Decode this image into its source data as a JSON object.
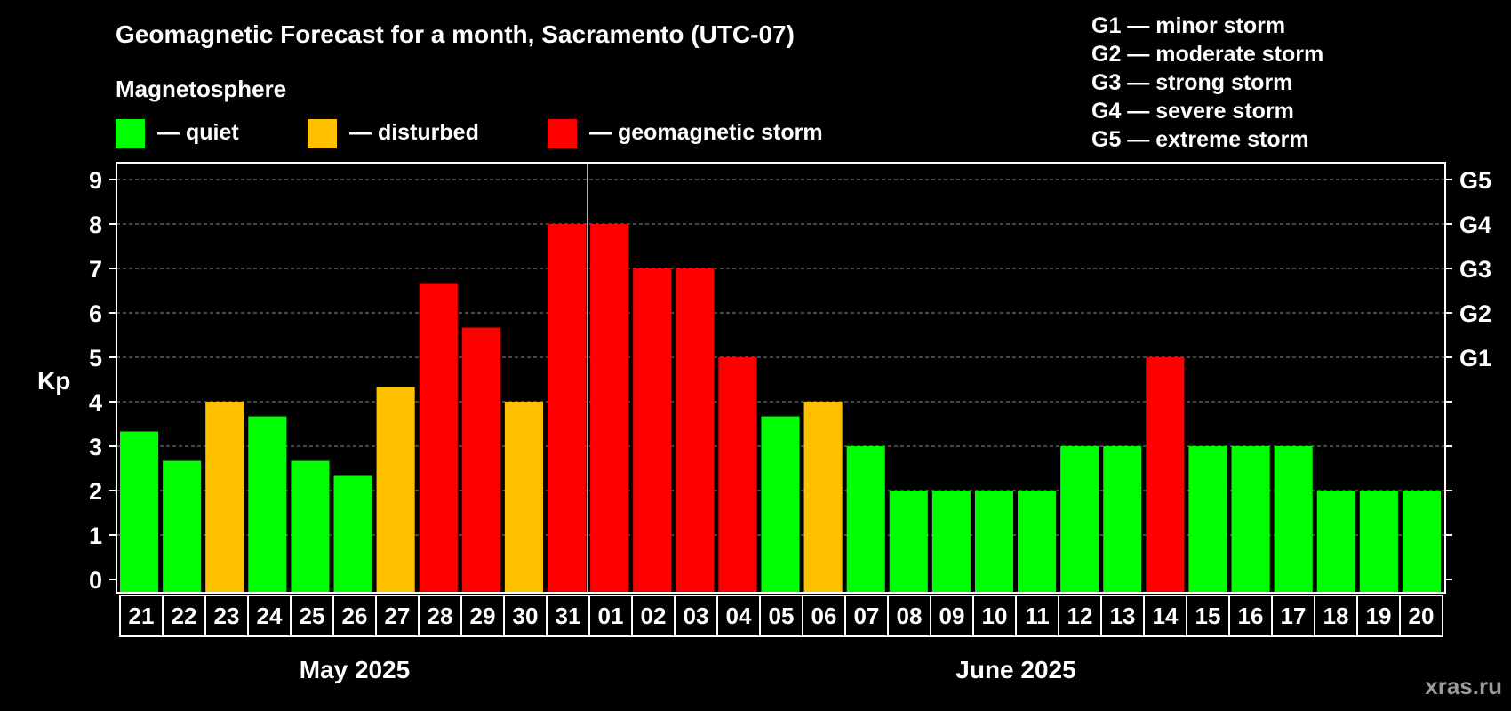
{
  "chart_data": {
    "type": "bar",
    "title": "Geomagnetic Forecast for a month, Sacramento (UTC-07)",
    "subtitle": "Magnetosphere",
    "ylabel": "Kp",
    "ylim": [
      0,
      9
    ],
    "yticks": [
      0,
      1,
      2,
      3,
      4,
      5,
      6,
      7,
      8,
      9
    ],
    "grid": true,
    "legend": [
      {
        "label": "— quiet",
        "color": "#00ff00"
      },
      {
        "label": "— disturbed",
        "color": "#ffc000"
      },
      {
        "label": "— geomagnetic storm",
        "color": "#ff0000"
      }
    ],
    "storm_scale": [
      "G1 — minor storm",
      "G2 — moderate storm",
      "G3 — strong storm",
      "G4 — severe storm",
      "G5 — extreme storm"
    ],
    "right_axis": [
      {
        "kp": 5,
        "label": "G1"
      },
      {
        "kp": 6,
        "label": "G2"
      },
      {
        "kp": 7,
        "label": "G3"
      },
      {
        "kp": 8,
        "label": "G4"
      },
      {
        "kp": 9,
        "label": "G5"
      }
    ],
    "categories": [
      "21",
      "22",
      "23",
      "24",
      "25",
      "26",
      "27",
      "28",
      "29",
      "30",
      "31",
      "01",
      "02",
      "03",
      "04",
      "05",
      "06",
      "07",
      "08",
      "09",
      "10",
      "11",
      "12",
      "13",
      "14",
      "15",
      "16",
      "17",
      "18",
      "19",
      "20"
    ],
    "values": [
      3.33,
      2.67,
      4,
      3.67,
      2.67,
      2.33,
      4.33,
      6.67,
      5.67,
      4,
      8,
      8,
      7,
      7,
      5,
      3.67,
      4,
      3,
      2,
      2,
      2,
      2,
      3,
      3,
      5,
      3,
      3,
      3,
      2,
      2,
      2
    ],
    "levels": [
      "quiet",
      "quiet",
      "disturbed",
      "quiet",
      "quiet",
      "quiet",
      "disturbed",
      "storm",
      "storm",
      "disturbed",
      "storm",
      "storm",
      "storm",
      "storm",
      "storm",
      "quiet",
      "disturbed",
      "quiet",
      "quiet",
      "quiet",
      "quiet",
      "quiet",
      "quiet",
      "quiet",
      "storm",
      "quiet",
      "quiet",
      "quiet",
      "quiet",
      "quiet",
      "quiet"
    ],
    "level_colors": {
      "quiet": "#00ff00",
      "disturbed": "#ffc000",
      "storm": "#ff0000"
    },
    "months": [
      {
        "label": "May 2025",
        "first_index": 0,
        "last_index": 10
      },
      {
        "label": "June 2025",
        "first_index": 11,
        "last_index": 30
      }
    ],
    "month_divider_after_index": 10
  },
  "watermark": "xras.ru"
}
